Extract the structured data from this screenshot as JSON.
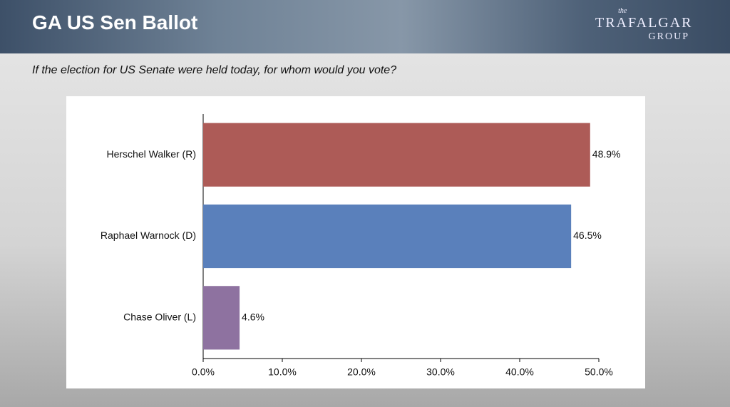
{
  "header": {
    "title": "GA US Sen Ballot",
    "logo": {
      "small": "the",
      "name": "TRAFALGAR",
      "sub": "GROUP"
    }
  },
  "question": "If the election for US Senate were held today, for whom would you vote?",
  "chart_data": {
    "type": "hbar",
    "categories": [
      "Herschel Walker (R)",
      "Raphael Warnock (D)",
      "Chase Oliver (L)"
    ],
    "values": [
      48.9,
      46.5,
      4.6
    ],
    "value_labels": [
      "48.9%",
      "46.5%",
      "4.6%"
    ],
    "colors": [
      "#ad5b57",
      "#5a80bb",
      "#8e72a0"
    ],
    "xlim": [
      0,
      50
    ],
    "xticks": [
      {
        "value": 0,
        "label": "0.0%"
      },
      {
        "value": 10,
        "label": "10.0%"
      },
      {
        "value": 20,
        "label": "20.0%"
      },
      {
        "value": 30,
        "label": "30.0%"
      },
      {
        "value": 40,
        "label": "40.0%"
      },
      {
        "value": 50,
        "label": "50.0%"
      }
    ]
  }
}
